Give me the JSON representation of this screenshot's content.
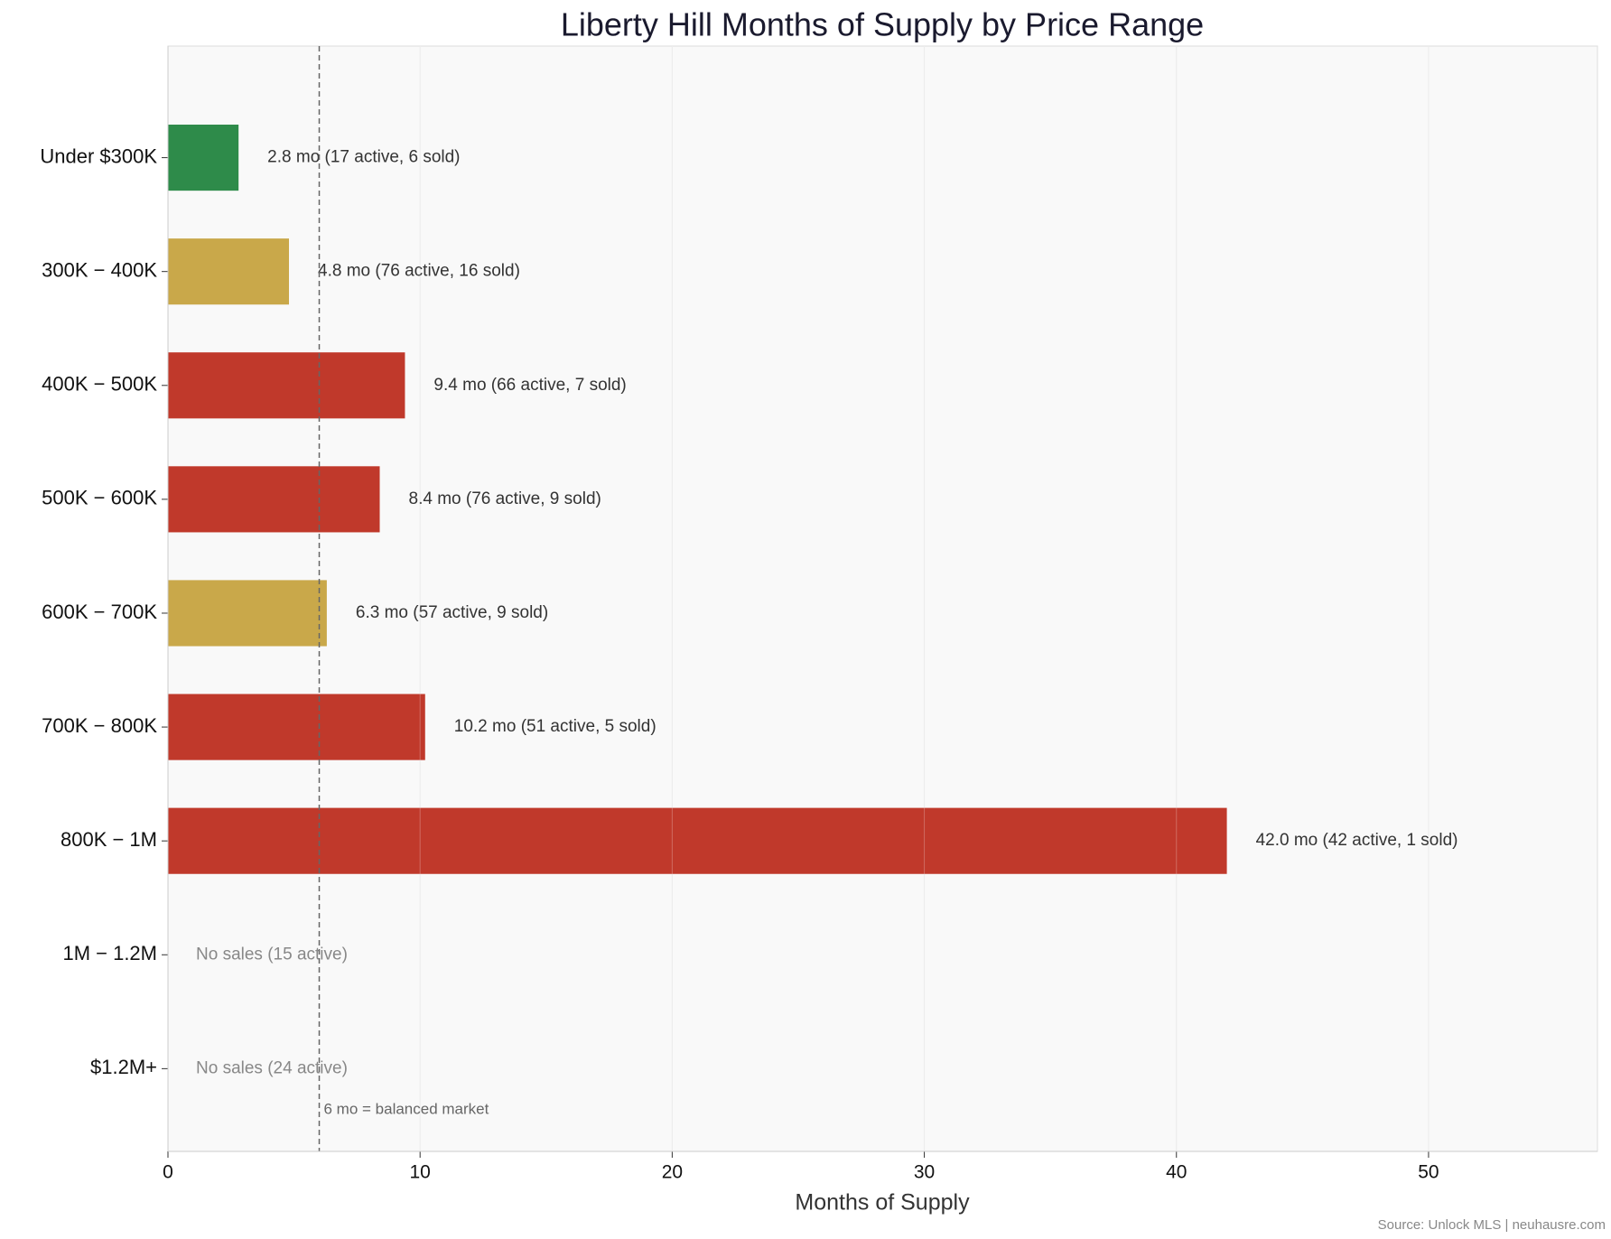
{
  "chart_data": {
    "type": "barh",
    "title": "Liberty Hill Months of Supply by Price Range",
    "x_label": "Months of Supply",
    "source": "Source: Unlock MLS | neuhausre.com",
    "categories": [
      "Under $300K",
      "300K − 400K",
      "400K − 500K",
      "500K − 600K",
      "600K − 700K",
      "700K − 800K",
      "800K − 1M",
      "1M − 1.2M",
      "$1.2M+"
    ],
    "values": [
      2.8,
      4.8,
      9.4,
      8.4,
      6.3,
      10.2,
      42.0,
      null,
      null
    ],
    "value_labels": [
      "2.8 mo  (17 active, 6 sold)",
      "4.8 mo  (76 active, 16 sold)",
      "9.4 mo  (66 active, 7 sold)",
      "8.4 mo  (76 active, 9 sold)",
      "6.3 mo  (57 active, 9 sold)",
      "10.2 mo  (51 active, 5 sold)",
      "42.0 mo  (42 active, 1 sold)",
      "No sales  (15 active)",
      "No sales  (24 active)"
    ],
    "colors": [
      "#2e8b4a",
      "#c9a84a",
      "#c0392b",
      "#c0392b",
      "#c9a84a",
      "#c0392b",
      "#c0392b",
      null,
      null
    ],
    "reference_line": {
      "value": 6,
      "label": "6 mo = balanced market"
    },
    "xlim": [
      0,
      56.7
    ],
    "xticks": [
      0,
      10,
      20,
      30,
      40,
      50
    ],
    "grid": true
  }
}
